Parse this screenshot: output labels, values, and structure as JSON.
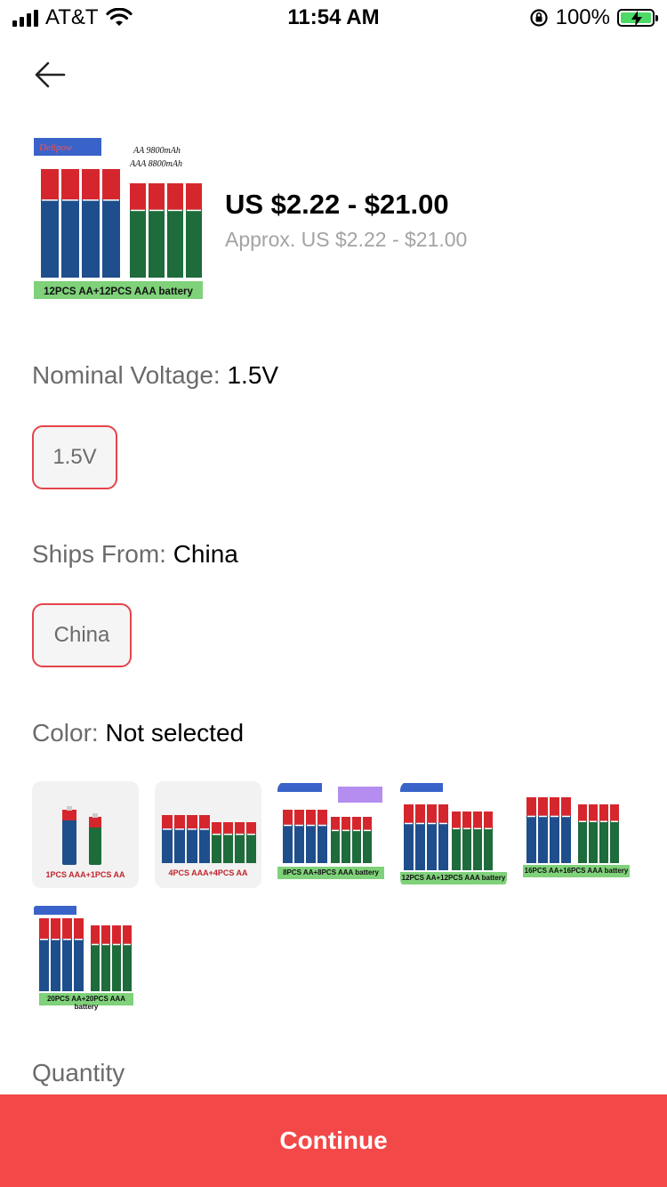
{
  "status_bar": {
    "carrier": "AT&T",
    "time": "11:54 AM",
    "battery": "100%"
  },
  "product": {
    "price_range": "US $2.22 - $21.00",
    "approx_price": "Approx. US $2.22 - $21.00",
    "image": {
      "badge": "Delipow",
      "line1": "AA 9800mAh",
      "line2": "AAA 8800mAh",
      "caption": "12PCS AA+12PCS AAA battery"
    }
  },
  "voltage": {
    "label": "Nominal Voltage: ",
    "value": "1.5V",
    "option": "1.5V"
  },
  "ships_from": {
    "label": "Ships From: ",
    "value": "China",
    "option": "China"
  },
  "color": {
    "label": "Color: ",
    "value": "Not selected",
    "options": [
      "1PCS AAA+1PCS AA",
      "4PCS AAA+4PCS AA",
      "8PCS AA+8PCS AAA battery",
      "12PCS AA+12PCS AAA battery",
      "16PCS AA+16PCS AAA battery",
      "20PCS AA+20PCS AAA battery"
    ]
  },
  "quantity_label": "Quantity",
  "continue_label": "Continue",
  "colors": {
    "accent": "#f34848",
    "chip_border": "#e6434c",
    "battery_red": "#d6262d",
    "battery_blue": "#1f4e8c",
    "battery_green": "#1e6b3c"
  },
  "icons": [
    "signal-icon",
    "wifi-icon",
    "rotation-lock-icon",
    "battery-icon",
    "back-arrow-icon"
  ]
}
